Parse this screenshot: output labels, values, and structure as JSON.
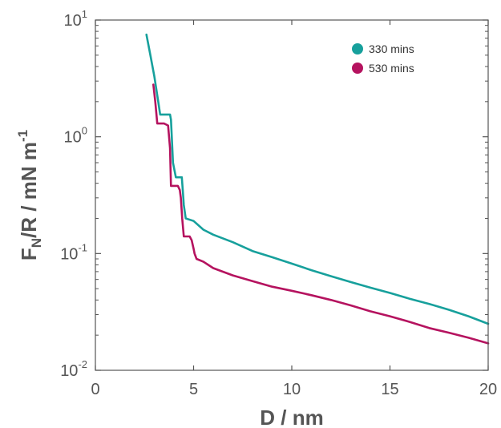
{
  "chart_data": {
    "type": "line",
    "xlabel": "D / nm",
    "ylabel": {
      "main": "F",
      "sub": "N",
      "rest": "/R / mN m",
      "sup": "-1"
    },
    "xscale": "linear",
    "yscale": "log",
    "xlim": [
      0,
      20
    ],
    "ylim": [
      0.01,
      10
    ],
    "x_ticks": [
      {
        "value": 0,
        "label": "0"
      },
      {
        "value": 5,
        "label": "5"
      },
      {
        "value": 10,
        "label": "10"
      },
      {
        "value": 15,
        "label": "15"
      },
      {
        "value": 20,
        "label": "20"
      }
    ],
    "y_ticks": [
      {
        "value": 0.01,
        "base": "10",
        "exp": "-2"
      },
      {
        "value": 0.1,
        "base": "10",
        "exp": "-1"
      },
      {
        "value": 1,
        "base": "10",
        "exp": "0"
      },
      {
        "value": 10,
        "base": "10",
        "exp": "1"
      }
    ],
    "grid": false,
    "legend_position": "top-right",
    "series": [
      {
        "name": "330 mins",
        "color": "#17a09c",
        "x": [
          2.6,
          2.8,
          3.0,
          3.2,
          3.3,
          3.8,
          3.85,
          3.9,
          3.95,
          4.1,
          4.4,
          4.45,
          4.5,
          4.6,
          5.0,
          5.5,
          6.0,
          7.0,
          8.0,
          9.0,
          10.0,
          11.0,
          12.0,
          13.0,
          14.0,
          15.0,
          16.0,
          17.0,
          18.0,
          19.0,
          20.0
        ],
        "y": [
          7.5,
          5.0,
          3.3,
          2.0,
          1.55,
          1.55,
          1.4,
          0.9,
          0.6,
          0.45,
          0.45,
          0.35,
          0.26,
          0.2,
          0.19,
          0.16,
          0.145,
          0.125,
          0.105,
          0.093,
          0.082,
          0.072,
          0.064,
          0.057,
          0.051,
          0.046,
          0.041,
          0.037,
          0.033,
          0.029,
          0.025
        ]
      },
      {
        "name": "530 mins",
        "color": "#b5135f",
        "x": [
          2.95,
          3.05,
          3.15,
          3.5,
          3.7,
          3.8,
          3.85,
          4.2,
          4.3,
          4.35,
          4.42,
          4.5,
          4.8,
          4.9,
          5.0,
          5.05,
          5.15,
          5.5,
          6.0,
          7.0,
          8.0,
          9.0,
          10.0,
          11.0,
          12.0,
          13.0,
          14.0,
          15.0,
          16.0,
          17.0,
          18.0,
          19.0,
          20.0
        ],
        "y": [
          2.8,
          2.0,
          1.3,
          1.3,
          1.25,
          0.8,
          0.38,
          0.38,
          0.35,
          0.3,
          0.2,
          0.14,
          0.14,
          0.13,
          0.11,
          0.1,
          0.09,
          0.085,
          0.075,
          0.065,
          0.058,
          0.052,
          0.048,
          0.044,
          0.04,
          0.036,
          0.032,
          0.029,
          0.026,
          0.023,
          0.021,
          0.019,
          0.017
        ]
      }
    ]
  }
}
